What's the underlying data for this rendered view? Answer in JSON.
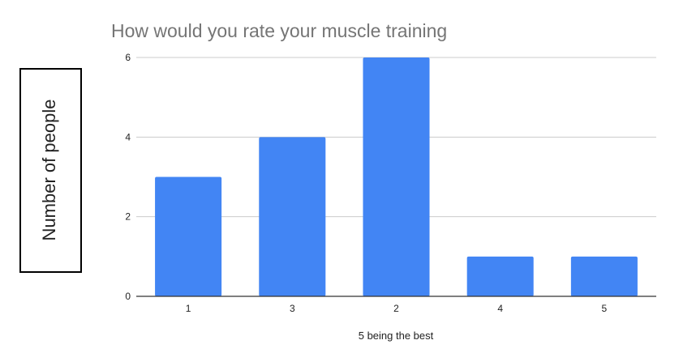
{
  "chart_data": {
    "type": "bar",
    "title": "How would you rate your muscle training",
    "xlabel": "5 being the best",
    "ylabel": "Number of people",
    "categories": [
      "1",
      "3",
      "2",
      "4",
      "5"
    ],
    "values": [
      3,
      4,
      6,
      1,
      1
    ],
    "ylim": [
      0,
      6
    ],
    "yticks": [
      "0",
      "2",
      "4",
      "6"
    ],
    "grid": true,
    "legend": "none",
    "colors": {
      "bar": "#4285f4",
      "title": "#757575",
      "tick_label": "#222222",
      "axis_title": "#222222",
      "gridline": "#cccccc",
      "baseline": "#333333",
      "ylabel_box_border": "#000000"
    }
  }
}
